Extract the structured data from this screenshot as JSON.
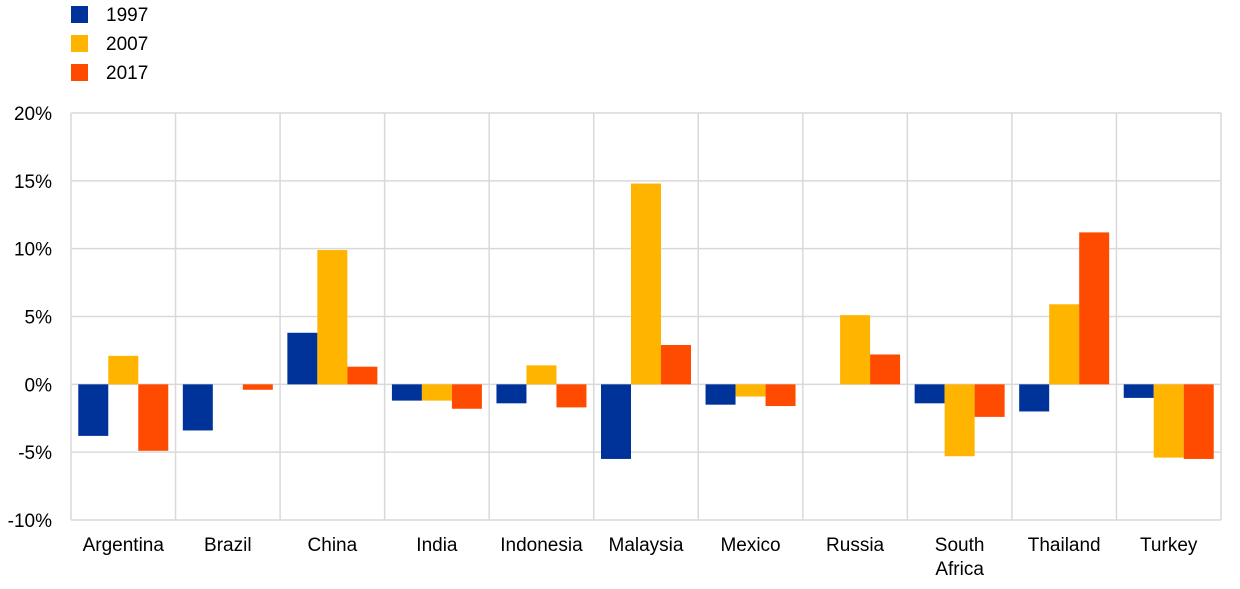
{
  "chart_data": {
    "type": "bar",
    "title": "",
    "xlabel": "",
    "ylabel": "",
    "ylim": [
      -10,
      20
    ],
    "yticks": [
      {
        "value": -10,
        "label": "-10%"
      },
      {
        "value": -5,
        "label": "-5%"
      },
      {
        "value": 0,
        "label": "0%"
      },
      {
        "value": 5,
        "label": "5%"
      },
      {
        "value": 10,
        "label": "10%"
      },
      {
        "value": 15,
        "label": "15%"
      },
      {
        "value": 20,
        "label": "20%"
      }
    ],
    "grid": true,
    "legend_position": "top-left",
    "categories": [
      [
        "Argentina"
      ],
      [
        "Brazil"
      ],
      [
        "China"
      ],
      [
        "India"
      ],
      [
        "Indonesia"
      ],
      [
        "Malaysia"
      ],
      [
        "Mexico"
      ],
      [
        "Russia"
      ],
      [
        "South",
        "Africa"
      ],
      [
        "Thailand"
      ],
      [
        "Turkey"
      ]
    ],
    "series": [
      {
        "name": "1997",
        "color": "#003399",
        "values": [
          -3.8,
          -3.4,
          3.8,
          -1.2,
          -1.4,
          -5.5,
          -1.5,
          null,
          -1.4,
          -2.0,
          -1.0
        ]
      },
      {
        "name": "2007",
        "color": "#FFB400",
        "values": [
          2.1,
          null,
          9.9,
          -1.2,
          1.4,
          14.8,
          -0.9,
          5.1,
          -5.3,
          5.9,
          -5.4
        ]
      },
      {
        "name": "2017",
        "color": "#FF4B00",
        "values": [
          -4.9,
          -0.4,
          1.3,
          -1.8,
          -1.7,
          2.9,
          -1.6,
          2.2,
          -2.4,
          11.2,
          -5.5
        ]
      }
    ]
  }
}
